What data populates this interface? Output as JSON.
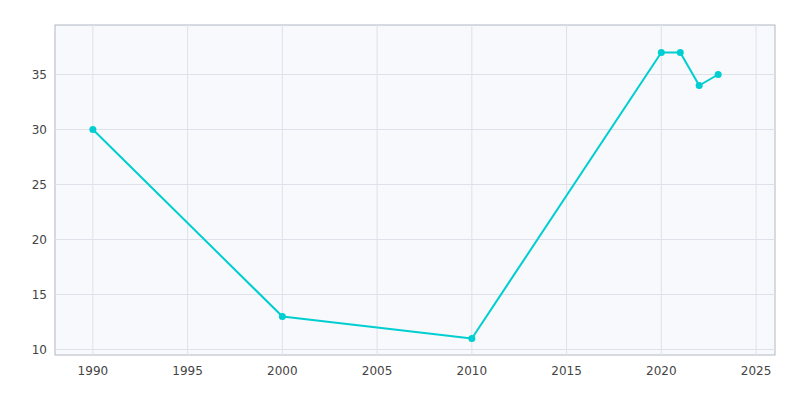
{
  "chart_data": {
    "type": "line",
    "x": [
      1990,
      2000,
      2010,
      2020,
      2021,
      2022,
      2023
    ],
    "values": [
      30,
      13,
      11,
      37,
      37,
      34,
      35
    ],
    "color": "#00CED1",
    "marker": "circle",
    "xlim": [
      1988,
      2026
    ],
    "ylim": [
      9.5,
      39.5
    ],
    "xticks": [
      1990,
      1995,
      2000,
      2005,
      2010,
      2015,
      2020,
      2025
    ],
    "yticks": [
      10,
      15,
      20,
      25,
      30,
      35
    ],
    "grid": true
  }
}
